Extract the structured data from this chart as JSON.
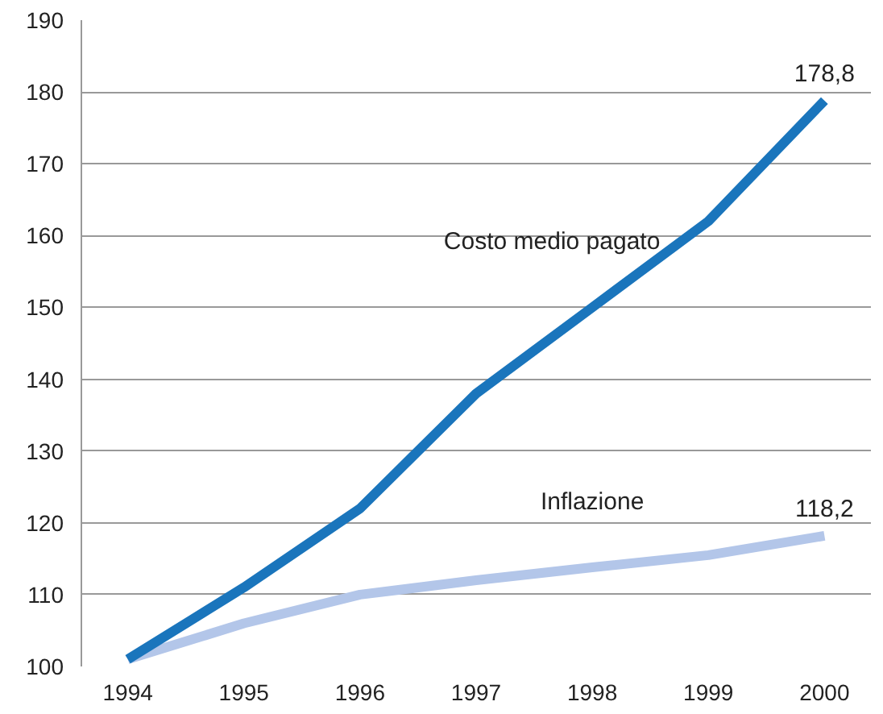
{
  "chart_data": {
    "type": "line",
    "x": [
      1994,
      1995,
      1996,
      1997,
      1998,
      1999,
      2000
    ],
    "series": [
      {
        "name": "Costo medio pagato",
        "color": "#1a75bc",
        "values": [
          101,
          111,
          122,
          138,
          150,
          162,
          178.8
        ],
        "value_labels": [
          null,
          null,
          null,
          null,
          null,
          null,
          "178,8"
        ]
      },
      {
        "name": "Inflazione",
        "color": "#b3c6e9",
        "values": [
          101,
          106,
          110,
          112,
          113.8,
          115.5,
          118.2
        ],
        "value_labels": [
          null,
          null,
          null,
          null,
          null,
          null,
          "118,2"
        ]
      }
    ],
    "xlim": [
      1993.6,
      2000.4
    ],
    "xticks": [
      1994,
      1995,
      1996,
      1997,
      1998,
      1999,
      2000
    ],
    "ylim": [
      100,
      190
    ],
    "yticks": [
      100,
      110,
      120,
      130,
      140,
      150,
      160,
      170,
      180,
      190
    ],
    "grid": "y",
    "marker": "none",
    "line_style": "solid"
  }
}
